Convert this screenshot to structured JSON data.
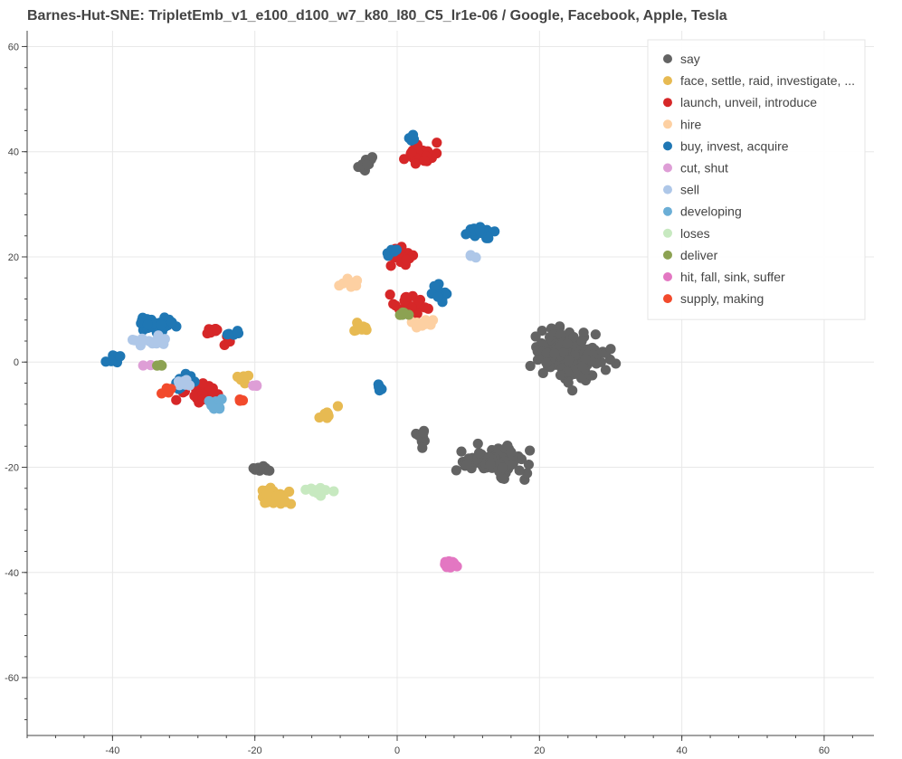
{
  "chart_data": {
    "type": "scatter",
    "title": "Barnes-Hut-SNE: TripletEmb_v1_e100_d100_w7_k80_l80_C5_lr1e-06 / Google, Facebook, Apple, Tesla",
    "xlabel": "",
    "ylabel": "",
    "xlim": [
      -52,
      67
    ],
    "ylim": [
      -71,
      63
    ],
    "x_ticks": [
      -40,
      -20,
      0,
      20,
      40,
      60
    ],
    "y_ticks": [
      -60,
      -40,
      -20,
      0,
      20,
      40,
      60
    ],
    "grid": true,
    "legend_position": "top-right",
    "series": [
      {
        "name": "say",
        "color": "#636363",
        "clusters": [
          [
            -4.5,
            37.5,
            1.2,
            1.5,
            14
          ],
          [
            23,
            2,
            4,
            4,
            120
          ],
          [
            26,
            0,
            4,
            4,
            60
          ],
          [
            14,
            -19,
            5,
            3,
            70
          ],
          [
            3.5,
            -15,
            0.8,
            1.5,
            8
          ],
          [
            -19,
            -20.5,
            1.5,
            1,
            12
          ]
        ]
      },
      {
        "name": "face, settle, raid, investigate, ...",
        "color": "#e7ba52",
        "clusters": [
          [
            -17.5,
            -25.5,
            2,
            1.5,
            40
          ],
          [
            -10,
            -10,
            1.5,
            1.5,
            8
          ],
          [
            -5,
            6.5,
            1,
            1,
            8
          ],
          [
            -22,
            -3,
            1.5,
            2,
            7
          ]
        ]
      },
      {
        "name": "launch, unveil, introduce",
        "color": "#d62728",
        "clusters": [
          [
            3,
            39.5,
            2,
            2,
            30
          ],
          [
            0.5,
            20,
            1.5,
            2,
            20
          ],
          [
            1.5,
            11,
            2.5,
            2,
            20
          ],
          [
            -27.5,
            -5.5,
            2.5,
            2,
            30
          ],
          [
            -26,
            5,
            2,
            2,
            12
          ]
        ]
      },
      {
        "name": "hire",
        "color": "#fdd0a2",
        "clusters": [
          [
            -7,
            15,
            2,
            1,
            8
          ],
          [
            3.5,
            7.5,
            1.5,
            1,
            10
          ]
        ]
      },
      {
        "name": "buy, invest, acquire",
        "color": "#1f77b4",
        "clusters": [
          [
            11.5,
            24.5,
            1.5,
            1,
            20
          ],
          [
            -34,
            7,
            2.5,
            1.5,
            35
          ],
          [
            -40,
            0.5,
            1,
            1,
            7
          ],
          [
            6,
            13,
            1.5,
            2,
            12
          ],
          [
            -2.5,
            -5,
            0.5,
            1,
            5
          ],
          [
            -23,
            5.5,
            1.5,
            0.5,
            5
          ],
          [
            -30,
            -4,
            2,
            2,
            7
          ],
          [
            2,
            42,
            1,
            1,
            5
          ],
          [
            -1,
            21,
            1,
            2,
            5
          ]
        ]
      },
      {
        "name": "cut, shut",
        "color": "#de9ed6",
        "clusters": [
          [
            -20,
            -4.5,
            0.5,
            0.3,
            3
          ],
          [
            -35,
            -0.5,
            0.5,
            0.3,
            2
          ]
        ]
      },
      {
        "name": "sell",
        "color": "#aec7e8",
        "clusters": [
          [
            -35,
            4,
            2,
            1,
            15
          ],
          [
            -30,
            -3.5,
            1.5,
            1.5,
            6
          ],
          [
            10.5,
            20,
            0.5,
            0.5,
            3
          ]
        ]
      },
      {
        "name": "developing",
        "color": "#6baed6",
        "clusters": [
          [
            -25.5,
            -8,
            1,
            1.5,
            10
          ]
        ]
      },
      {
        "name": "loses",
        "color": "#c7e9c0",
        "clusters": [
          [
            -11,
            -24.5,
            1.5,
            1,
            15
          ]
        ]
      },
      {
        "name": "deliver",
        "color": "#8ca252",
        "clusters": [
          [
            1,
            9,
            0.7,
            0.5,
            5
          ],
          [
            -33.5,
            -0.5,
            0.5,
            0.5,
            3
          ]
        ]
      },
      {
        "name": "hit, fall, sink, suffer",
        "color": "#e377c2",
        "clusters": [
          [
            7.5,
            -38.5,
            1,
            0.6,
            25
          ]
        ]
      },
      {
        "name": "supply, making",
        "color": "#f24a2c",
        "clusters": [
          [
            -32.5,
            -5.5,
            0.8,
            0.8,
            4
          ],
          [
            -22,
            -7.5,
            0.5,
            0.8,
            3
          ]
        ]
      }
    ]
  }
}
